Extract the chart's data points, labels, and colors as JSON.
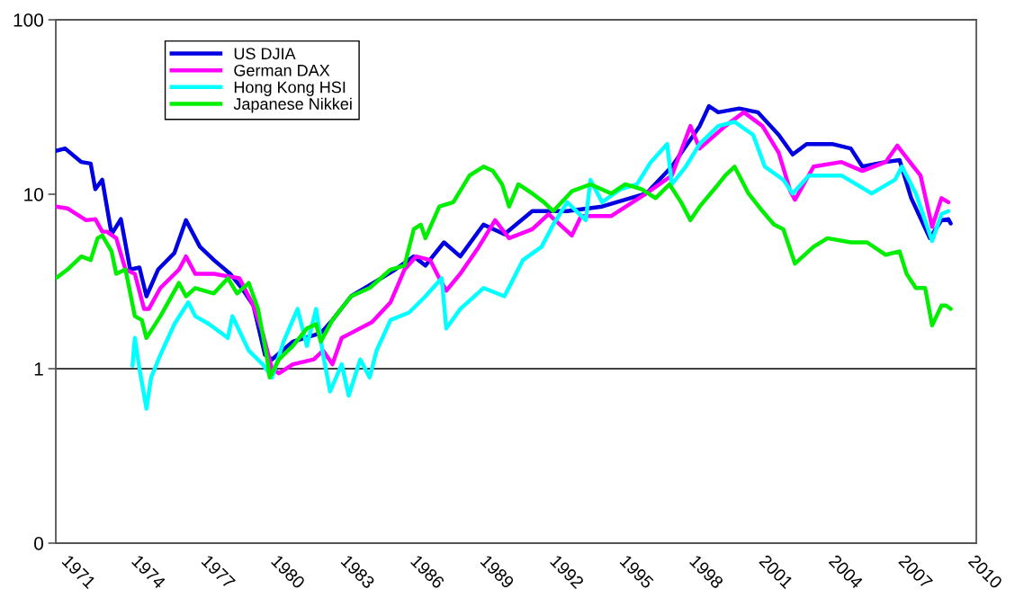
{
  "chart_data": {
    "type": "line",
    "log": true,
    "xlim": [
      1970.4,
      2010
    ],
    "xticks": [
      1971,
      1974,
      1977,
      1980,
      1983,
      1986,
      1989,
      1992,
      1995,
      1998,
      2001,
      2004,
      2007,
      2010
    ],
    "ylim": [
      0.1,
      100
    ],
    "yticks": [
      {
        "value": 0.1,
        "label": "0"
      },
      1,
      10,
      100
    ],
    "grid": false,
    "legend": "top left",
    "line_style": "solid",
    "marker": "none",
    "ref_lines": [
      {
        "axis": "y",
        "value": 1,
        "label": null,
        "color": "#000000"
      }
    ],
    "series": [
      {
        "name": "US DJIA",
        "color": "#0000e0",
        "x": [
          1970.4,
          1970.8,
          1971.5,
          1971.9,
          1972.1,
          1972.4,
          1972.8,
          1973.2,
          1973.6,
          1974.0,
          1974.3,
          1974.8,
          1975.5,
          1976.0,
          1976.6,
          1977.2,
          1977.9,
          1978.4,
          1978.9,
          1979.4,
          1979.7,
          1980.6,
          1981.8,
          1982.3,
          1983.1,
          1984.4,
          1985.0,
          1985.8,
          1986.3,
          1987.1,
          1987.8,
          1988.8,
          1989.7,
          1990.9,
          1992.4,
          1993.9,
          1995.8,
          1996.9,
          1998.1,
          1998.5,
          1998.9,
          1999.8,
          2000.6,
          2001.5,
          2002.1,
          2002.7,
          2003.8,
          2004.6,
          2005.1,
          2006.1,
          2006.7,
          2007.2,
          2008.0,
          2008.5,
          2008.8,
          2008.9
        ],
        "values": [
          17.7,
          18.3,
          15.3,
          15,
          10.7,
          12.1,
          5.9,
          7.2,
          3.7,
          3.8,
          2.6,
          3.7,
          4.6,
          7.1,
          5.0,
          4.2,
          3.5,
          2.9,
          2.3,
          1.2,
          1.13,
          1.43,
          1.6,
          1.9,
          2.6,
          3.3,
          3.7,
          4.4,
          3.9,
          5.3,
          4.4,
          6.7,
          5.9,
          8.0,
          8.0,
          8.5,
          10.1,
          14.4,
          24.6,
          32,
          29.5,
          31,
          29.5,
          21.9,
          16.9,
          19.4,
          19.4,
          18.3,
          14.4,
          15.3,
          15.7,
          9.5,
          5.6,
          7.1,
          7.2,
          6.8
        ]
      },
      {
        "name": "German DAX",
        "color": "#ff00ff",
        "x": [
          1970.4,
          1970.9,
          1971.7,
          1972.1,
          1972.4,
          1972.6,
          1973.0,
          1973.4,
          1973.8,
          1974.2,
          1974.4,
          1974.9,
          1975.7,
          1976.0,
          1976.4,
          1977.2,
          1978.3,
          1978.9,
          1979.3,
          1979.7,
          1980.0,
          1980.6,
          1981.5,
          1981.9,
          1982.3,
          1982.7,
          1983.1,
          1984.0,
          1984.8,
          1985.4,
          1985.9,
          1986.5,
          1986.9,
          1987.2,
          1987.8,
          1988.6,
          1989.3,
          1989.9,
          1990.9,
          1991.6,
          1992.6,
          1993.0,
          1994.3,
          1995.8,
          1996.9,
          1997.7,
          1998.1,
          1999.2,
          2000.0,
          2000.8,
          2001.5,
          2002.0,
          2002.2,
          2003.0,
          2004.2,
          2005.1,
          2006.1,
          2006.6,
          2007.0,
          2007.6,
          2008.1,
          2008.5,
          2008.8
        ],
        "values": [
          8.5,
          8.3,
          7.1,
          7.2,
          6.1,
          6.1,
          5.6,
          3.7,
          3.5,
          2.2,
          2.2,
          2.9,
          3.7,
          4.4,
          3.5,
          3.5,
          3.3,
          2.3,
          1.6,
          1.0,
          0.94,
          1.06,
          1.13,
          1.27,
          1.06,
          1.5,
          1.6,
          1.85,
          2.4,
          3.7,
          4.4,
          4.2,
          3.3,
          2.8,
          3.5,
          5.0,
          7.1,
          5.6,
          6.3,
          7.7,
          5.8,
          7.5,
          7.5,
          10.1,
          12.8,
          24.6,
          18.3,
          24.6,
          29.5,
          24.6,
          17.3,
          10.4,
          9.3,
          14.4,
          15.3,
          13.6,
          15.3,
          19,
          16.2,
          12.8,
          6.5,
          9.5,
          9
        ]
      },
      {
        "name": "Hong Kong HSI",
        "color": "#00ffff",
        "x": [
          1973.7,
          1973.8,
          1974.0,
          1974.3,
          1974.5,
          1974.9,
          1975.5,
          1976.1,
          1976.4,
          1977.0,
          1977.8,
          1978.0,
          1978.7,
          1979.3,
          1979.7,
          1980.2,
          1980.8,
          1981.2,
          1981.6,
          1981.9,
          1982.2,
          1982.7,
          1983.0,
          1983.5,
          1983.9,
          1984.2,
          1984.8,
          1985.6,
          1986.3,
          1987.0,
          1987.2,
          1987.8,
          1988.8,
          1989.7,
          1990.5,
          1991.3,
          1991.8,
          1992.4,
          1993.2,
          1993.4,
          1993.9,
          1994.7,
          1995.4,
          1996.0,
          1996.7,
          1996.9,
          1997.5,
          1998.1,
          1998.9,
          1999.6,
          2000.4,
          2000.9,
          2001.7,
          2002.1,
          2002.8,
          2004.2,
          2005.5,
          2006.5,
          2006.8,
          2007.4,
          2008.1,
          2008.5,
          2008.8
        ],
        "values": [
          1.04,
          1.5,
          1.0,
          0.59,
          0.89,
          1.2,
          1.8,
          2.4,
          2.0,
          1.8,
          1.5,
          2.0,
          1.27,
          1.06,
          0.89,
          1.43,
          2.2,
          1.35,
          2.2,
          1.2,
          0.74,
          1.06,
          0.7,
          1.13,
          0.89,
          1.27,
          1.9,
          2.1,
          2.6,
          3.3,
          1.7,
          2.2,
          2.9,
          2.6,
          4.2,
          5.0,
          6.7,
          9,
          7.1,
          12.1,
          9,
          10.7,
          11.4,
          15.3,
          19.4,
          11.4,
          14.4,
          19.4,
          24.6,
          26,
          21.9,
          14.4,
          12.1,
          10.1,
          12.8,
          12.8,
          10.1,
          12.1,
          14.4,
          10.1,
          5.4,
          7.7,
          8.0
        ]
      },
      {
        "name": "Japanese Nikkei",
        "color": "#00ee00",
        "x": [
          1970.4,
          1970.9,
          1971.5,
          1971.9,
          1972.2,
          1972.4,
          1972.8,
          1973.0,
          1973.4,
          1973.8,
          1974.1,
          1974.3,
          1974.9,
          1975.7,
          1976.0,
          1976.4,
          1977.2,
          1977.8,
          1978.2,
          1978.7,
          1979.1,
          1979.5,
          1979.6,
          1980.0,
          1980.6,
          1981.2,
          1981.6,
          1981.8,
          1982.3,
          1983.1,
          1983.9,
          1984.8,
          1985.4,
          1985.8,
          1986.1,
          1986.3,
          1986.9,
          1987.5,
          1988.2,
          1988.8,
          1989.2,
          1989.6,
          1989.9,
          1990.3,
          1990.9,
          1991.4,
          1991.8,
          1992.6,
          1993.4,
          1994.3,
          1994.9,
          1995.6,
          1996.2,
          1996.8,
          1997.3,
          1997.7,
          1998.1,
          1998.9,
          1999.2,
          1999.6,
          2000.2,
          2000.8,
          2001.3,
          2001.7,
          2002.2,
          2003.0,
          2003.6,
          2004.6,
          2005.3,
          2006.1,
          2006.7,
          2007.0,
          2007.4,
          2007.8,
          2008.1,
          2008.5,
          2008.7,
          2008.9
        ],
        "values": [
          3.3,
          3.7,
          4.4,
          4.2,
          5.6,
          5.8,
          4.7,
          3.5,
          3.7,
          2.0,
          1.9,
          1.5,
          2.0,
          3.1,
          2.6,
          2.9,
          2.7,
          3.3,
          2.7,
          3.1,
          2.2,
          1.13,
          0.89,
          1.13,
          1.35,
          1.7,
          1.8,
          1.43,
          1.9,
          2.6,
          2.9,
          3.7,
          3.9,
          6.3,
          6.7,
          5.6,
          8.5,
          9,
          12.8,
          14.4,
          13.6,
          11.4,
          8.5,
          11.4,
          10.1,
          9,
          8.0,
          10.4,
          11.4,
          10.1,
          11.4,
          10.7,
          9.5,
          11.4,
          9,
          7.1,
          8.5,
          11.4,
          12.8,
          14.4,
          10.1,
          8.0,
          6.7,
          6.3,
          4.0,
          5.0,
          5.6,
          5.3,
          5.3,
          4.5,
          4.7,
          3.5,
          2.9,
          2.9,
          1.77,
          2.3,
          2.3,
          2.2
        ]
      }
    ]
  }
}
